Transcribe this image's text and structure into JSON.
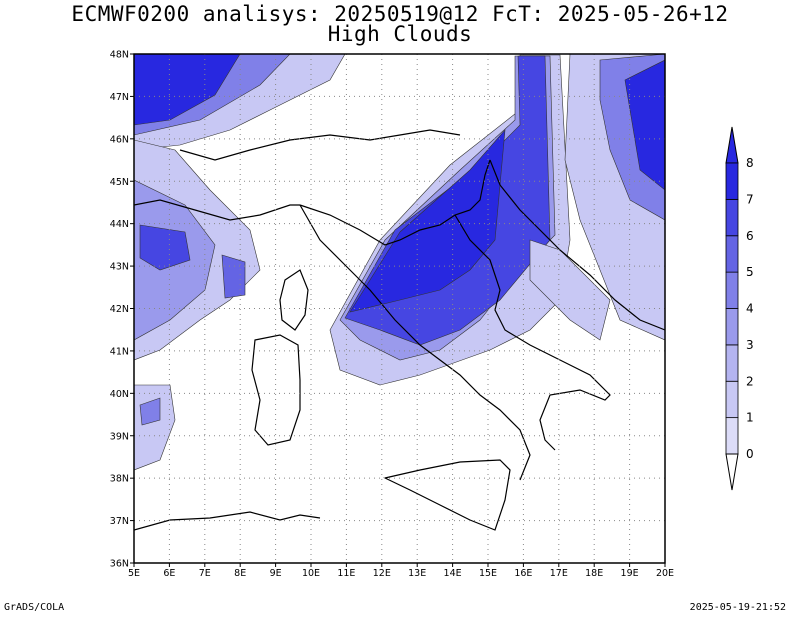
{
  "title": {
    "line1": "ECMWF0200 analisys: 20250519@12 FcT: 2025-05-26+12",
    "line2": "High Clouds"
  },
  "map": {
    "lat_labels": [
      "48N",
      "47N",
      "46N",
      "45N",
      "44N",
      "43N",
      "42N",
      "41N",
      "40N",
      "39N",
      "38N",
      "37N",
      "36N"
    ],
    "lon_labels": [
      "5E",
      "6E",
      "7E",
      "8E",
      "9E",
      "10E",
      "11E",
      "12E",
      "13E",
      "14E",
      "15E",
      "16E",
      "17E",
      "18E",
      "19E",
      "20E"
    ],
    "lat_range": [
      36,
      48
    ],
    "lon_range": [
      5,
      20
    ],
    "grid": "dotted"
  },
  "colorbar": {
    "levels": [
      "0",
      "1",
      "2",
      "3",
      "4",
      "5",
      "6",
      "7",
      "8"
    ],
    "colors": [
      "#dcdcf8",
      "#c8c8f4",
      "#b4b4f0",
      "#9a9aec",
      "#8080e8",
      "#6464e4",
      "#4646e2",
      "#2828e0"
    ]
  },
  "footer": {
    "left": "GrADS/COLA",
    "right": "2025-05-19-21:52"
  }
}
